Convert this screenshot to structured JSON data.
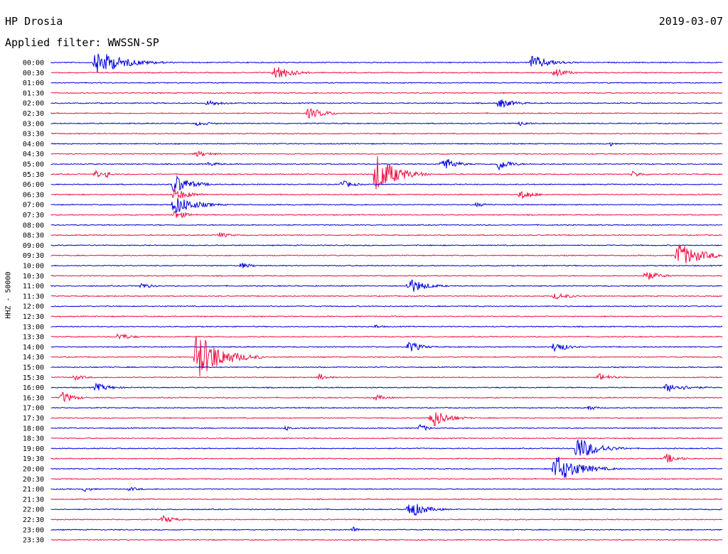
{
  "header": {
    "station": "HP Drosia",
    "date": "2019-03-07",
    "filter": "Applied filter: WWSSN-SP"
  },
  "channel": {
    "label": "HHZ - 50000"
  },
  "colors": {
    "trace_even": "#0000dd",
    "trace_odd": "#ee1144",
    "text": "#000000",
    "background": "#ffffff"
  },
  "chart_data": {
    "type": "helicorder",
    "title": "HP Drosia",
    "date": "2019-03-07",
    "filter": "WWSSN-SP",
    "channel": "HHZ - 50000",
    "row_minutes": 30,
    "row_labels": [
      "00:00",
      "00:30",
      "01:00",
      "01:30",
      "02:00",
      "02:30",
      "03:00",
      "03:30",
      "04:00",
      "04:30",
      "05:00",
      "05:30",
      "06:00",
      "06:30",
      "07:00",
      "07:30",
      "08:00",
      "08:30",
      "09:00",
      "09:30",
      "10:00",
      "10:30",
      "11:00",
      "11:30",
      "12:00",
      "12:30",
      "13:00",
      "13:30",
      "14:00",
      "14:30",
      "15:00",
      "15:30",
      "16:00",
      "16:30",
      "17:00",
      "17:30",
      "18:00",
      "18:30",
      "19:00",
      "19:30",
      "20:00",
      "20:30",
      "21:00",
      "21:30",
      "22:00",
      "22:30",
      "23:00",
      "23:30"
    ],
    "events": [
      {
        "row": 0,
        "minute": 2.0,
        "amp": 6.0,
        "dur": 3.5
      },
      {
        "row": 0,
        "minute": 21.5,
        "amp": 3.5,
        "dur": 2.5
      },
      {
        "row": 1,
        "minute": 10.0,
        "amp": 4.0,
        "dur": 2.0
      },
      {
        "row": 1,
        "minute": 22.5,
        "amp": 2.5,
        "dur": 1.5
      },
      {
        "row": 4,
        "minute": 7.0,
        "amp": 1.5,
        "dur": 2.0
      },
      {
        "row": 4,
        "minute": 20.0,
        "amp": 2.5,
        "dur": 2.0
      },
      {
        "row": 5,
        "minute": 11.5,
        "amp": 2.5,
        "dur": 2.5
      },
      {
        "row": 6,
        "minute": 6.5,
        "amp": 1.0,
        "dur": 2.5
      },
      {
        "row": 6,
        "minute": 21.0,
        "amp": 1.5,
        "dur": 1.0
      },
      {
        "row": 8,
        "minute": 25.0,
        "amp": 1.2,
        "dur": 0.5
      },
      {
        "row": 9,
        "minute": 6.5,
        "amp": 1.5,
        "dur": 2.0
      },
      {
        "row": 10,
        "minute": 7.0,
        "amp": 1.0,
        "dur": 2.0
      },
      {
        "row": 10,
        "minute": 17.5,
        "amp": 4.0,
        "dur": 1.5
      },
      {
        "row": 10,
        "minute": 20.0,
        "amp": 3.0,
        "dur": 1.5
      },
      {
        "row": 11,
        "minute": 2.0,
        "amp": 2.5,
        "dur": 0.5
      },
      {
        "row": 11,
        "minute": 2.5,
        "amp": 2.0,
        "dur": 0.5
      },
      {
        "row": 11,
        "minute": 14.5,
        "amp": 10.0,
        "dur": 2.5
      },
      {
        "row": 11,
        "minute": 26.0,
        "amp": 1.5,
        "dur": 1.5
      },
      {
        "row": 12,
        "minute": 13.0,
        "amp": 2.0,
        "dur": 1.5
      },
      {
        "row": 12,
        "minute": 5.5,
        "amp": 5.0,
        "dur": 2.0
      },
      {
        "row": 13,
        "minute": 5.5,
        "amp": 3.0,
        "dur": 2.0
      },
      {
        "row": 13,
        "minute": 21.0,
        "amp": 2.5,
        "dur": 1.5
      },
      {
        "row": 14,
        "minute": 5.5,
        "amp": 5.0,
        "dur": 2.5
      },
      {
        "row": 14,
        "minute": 19.0,
        "amp": 1.0,
        "dur": 2.0
      },
      {
        "row": 15,
        "minute": 5.5,
        "amp": 2.5,
        "dur": 1.5
      },
      {
        "row": 17,
        "minute": 7.5,
        "amp": 1.5,
        "dur": 1.5
      },
      {
        "row": 19,
        "minute": 28.0,
        "amp": 6.0,
        "dur": 3.0
      },
      {
        "row": 20,
        "minute": 8.5,
        "amp": 1.5,
        "dur": 1.5
      },
      {
        "row": 21,
        "minute": 26.5,
        "amp": 2.5,
        "dur": 2.0
      },
      {
        "row": 22,
        "minute": 4.0,
        "amp": 1.5,
        "dur": 1.5
      },
      {
        "row": 22,
        "minute": 16.0,
        "amp": 4.0,
        "dur": 2.0
      },
      {
        "row": 23,
        "minute": 22.5,
        "amp": 1.5,
        "dur": 2.5
      },
      {
        "row": 26,
        "minute": 14.5,
        "amp": 1.0,
        "dur": 1.0
      },
      {
        "row": 27,
        "minute": 3.0,
        "amp": 2.0,
        "dur": 1.5
      },
      {
        "row": 28,
        "minute": 16.0,
        "amp": 3.0,
        "dur": 1.5
      },
      {
        "row": 28,
        "minute": 22.5,
        "amp": 3.0,
        "dur": 1.5
      },
      {
        "row": 29,
        "minute": 6.5,
        "amp": 12.0,
        "dur": 3.0
      },
      {
        "row": 31,
        "minute": 12.0,
        "amp": 2.0,
        "dur": 1.0
      },
      {
        "row": 31,
        "minute": 1.0,
        "amp": 1.5,
        "dur": 1.5
      },
      {
        "row": 31,
        "minute": 24.5,
        "amp": 2.0,
        "dur": 1.5
      },
      {
        "row": 32,
        "minute": 2.0,
        "amp": 2.0,
        "dur": 2.0
      },
      {
        "row": 32,
        "minute": 27.5,
        "amp": 2.0,
        "dur": 3.0
      },
      {
        "row": 33,
        "minute": 0.5,
        "amp": 3.0,
        "dur": 1.5
      },
      {
        "row": 33,
        "minute": 14.5,
        "amp": 1.5,
        "dur": 1.5
      },
      {
        "row": 34,
        "minute": 24.0,
        "amp": 1.5,
        "dur": 1.0
      },
      {
        "row": 35,
        "minute": 17.0,
        "amp": 5.0,
        "dur": 2.0
      },
      {
        "row": 36,
        "minute": 16.5,
        "amp": 2.0,
        "dur": 1.0
      },
      {
        "row": 36,
        "minute": 10.5,
        "amp": 1.2,
        "dur": 1.0
      },
      {
        "row": 38,
        "minute": 23.5,
        "amp": 6.0,
        "dur": 2.5
      },
      {
        "row": 39,
        "minute": 27.5,
        "amp": 2.5,
        "dur": 1.5
      },
      {
        "row": 40,
        "minute": 22.5,
        "amp": 7.0,
        "dur": 3.0
      },
      {
        "row": 42,
        "minute": 1.5,
        "amp": 1.2,
        "dur": 1.0
      },
      {
        "row": 42,
        "minute": 3.5,
        "amp": 1.0,
        "dur": 1.5
      },
      {
        "row": 44,
        "minute": 16.0,
        "amp": 4.5,
        "dur": 2.0
      },
      {
        "row": 45,
        "minute": 5.0,
        "amp": 2.0,
        "dur": 1.5
      },
      {
        "row": 46,
        "minute": 13.5,
        "amp": 1.5,
        "dur": 1.0
      }
    ]
  }
}
